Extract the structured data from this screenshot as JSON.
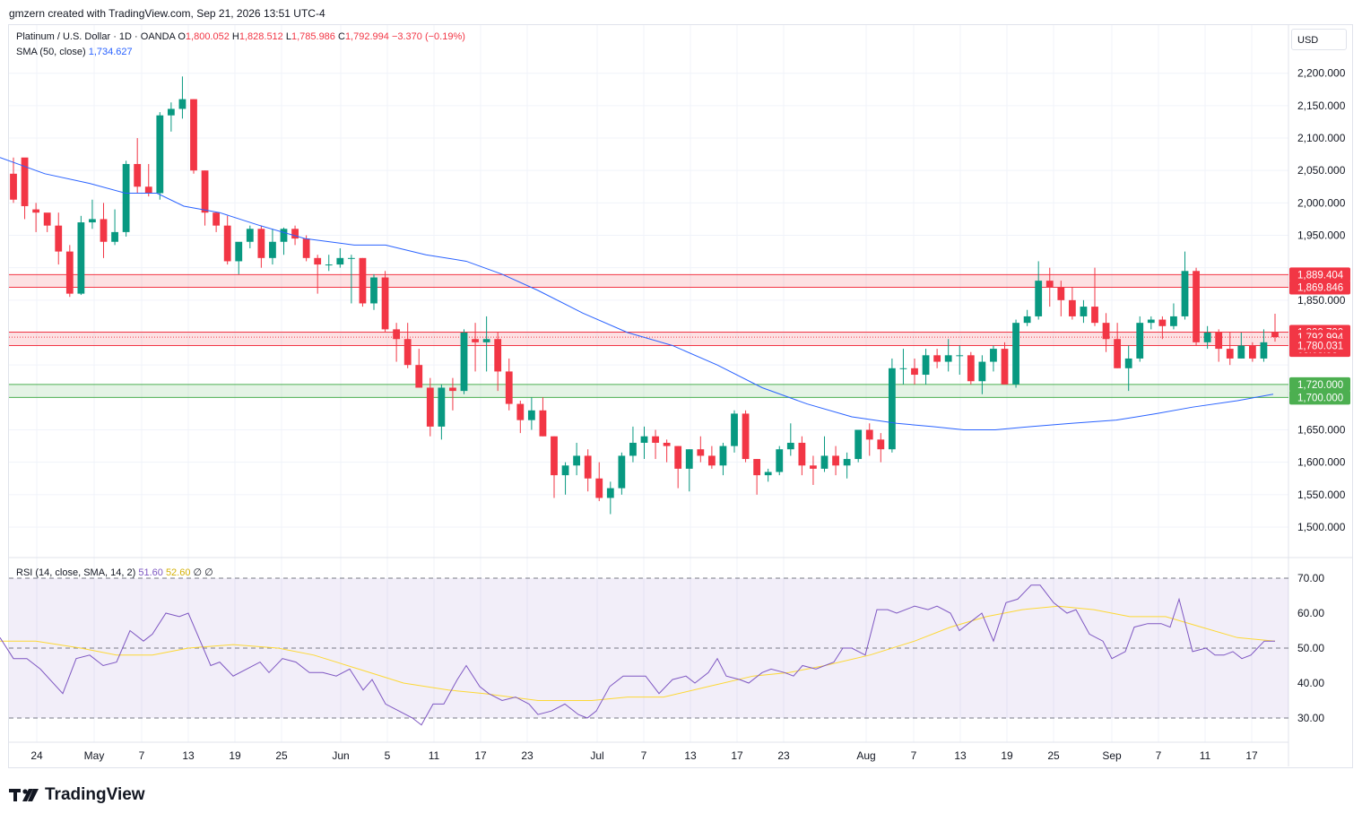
{
  "header": {
    "text": "gmzern created with TradingView.com, Sep 21, 2026 13:51 UTC-4"
  },
  "legend": {
    "symbol": "Platinum / U.S. Dollar · 1D · OANDA",
    "open_label": "O",
    "open": "1,800.052",
    "high_label": "H",
    "high": "1,828.512",
    "low_label": "L",
    "low": "1,785.986",
    "close_label": "C",
    "close": "1,792.994",
    "change": "−3.370 (−0.19%)",
    "sma_label": "SMA (50, close)",
    "sma_value": "1,734.627",
    "rsi_label": "RSI (14, close, SMA, 14, 2)",
    "rsi_value": "51.60",
    "rsi_sma_value": "52.60",
    "rsi_extra": "∅  ∅"
  },
  "currency_button": "USD",
  "brand": {
    "name": "TradingView",
    "logo_icon": "tradingview-logo-icon"
  },
  "colors": {
    "up": "#089981",
    "down": "#f23645",
    "sma": "#2962ff",
    "rsi": "#7e57c2",
    "rsi_sma": "#fdd835",
    "resistance_zone": "#f23645",
    "support_zone": "#4caf50"
  },
  "chart_data": {
    "type": "candlestick",
    "price_axis": {
      "ticks": [
        1500,
        1550,
        1600,
        1650,
        1700,
        1750,
        1800,
        1850,
        1900,
        1950,
        2000,
        2050,
        2100,
        2150,
        2200
      ],
      "tick_labels": [
        "1,500.000",
        "1,550.000",
        "1,600.000",
        "1,650.000",
        "1,700.000",
        "",
        "",
        "1,850.000",
        "",
        "1,950.000",
        "2,000.000",
        "2,050.000",
        "2,100.000",
        "2,150.000",
        "2,200.000"
      ]
    },
    "x_axis_labels": [
      "24",
      "May",
      "7",
      "13",
      "19",
      "25",
      "Jun",
      "5",
      "11",
      "17",
      "23",
      "Jul",
      "7",
      "13",
      "17",
      "23",
      "Aug",
      "7",
      "13",
      "19",
      "25",
      "Sep",
      "7",
      "11",
      "17"
    ],
    "price_labels": [
      {
        "value": 1889.404,
        "text": "1,889.404",
        "color": "#f23645"
      },
      {
        "value": 1869.846,
        "text": "1,869.846",
        "color": "#f23645"
      },
      {
        "value": 1800.7,
        "text": "1,800.700",
        "color": "#f23645"
      },
      {
        "value": 1792.994,
        "text": "1,792.994",
        "sub": "03:08:53",
        "color": "#f23645"
      },
      {
        "value": 1780.031,
        "text": "1,780.031",
        "color": "#f23645"
      },
      {
        "value": 1720.0,
        "text": "1,720.000",
        "color": "#4caf50"
      },
      {
        "value": 1700.0,
        "text": "1,700.000",
        "color": "#4caf50"
      }
    ],
    "zones": [
      {
        "from": 1869.846,
        "to": 1889.404,
        "kind": "resistance"
      },
      {
        "from": 1780.031,
        "to": 1800.7,
        "kind": "resistance"
      },
      {
        "from": 1700.0,
        "to": 1720.0,
        "kind": "support"
      }
    ],
    "candles": [
      [
        2045,
        2070,
        2000,
        2005
      ],
      [
        2070,
        2065,
        1975,
        1995
      ],
      [
        1990,
        2000,
        1955,
        1985
      ],
      [
        1985,
        1980,
        1955,
        1965
      ],
      [
        1965,
        1985,
        1905,
        1925
      ],
      [
        1925,
        1935,
        1855,
        1860
      ],
      [
        1860,
        1980,
        1858,
        1970
      ],
      [
        1970,
        2005,
        1960,
        1975
      ],
      [
        1975,
        2000,
        1915,
        1940
      ],
      [
        1940,
        1990,
        1935,
        1955
      ],
      [
        1955,
        2065,
        1948,
        2060
      ],
      [
        2060,
        2100,
        2015,
        2025
      ],
      [
        2025,
        2060,
        2010,
        2015
      ],
      [
        2015,
        2140,
        2005,
        2135
      ],
      [
        2135,
        2155,
        2110,
        2145
      ],
      [
        2145,
        2195,
        2130,
        2160
      ],
      [
        2160,
        2160,
        2045,
        2050
      ],
      [
        2050,
        2050,
        1965,
        1985
      ],
      [
        1985,
        1985,
        1955,
        1965
      ],
      [
        1965,
        1980,
        1905,
        1910
      ],
      [
        1910,
        1935,
        1890,
        1940
      ],
      [
        1940,
        1965,
        1930,
        1960
      ],
      [
        1960,
        1965,
        1900,
        1915
      ],
      [
        1915,
        1960,
        1905,
        1940
      ],
      [
        1940,
        1962,
        1920,
        1960
      ],
      [
        1960,
        1965,
        1935,
        1945
      ],
      [
        1945,
        1950,
        1910,
        1915
      ],
      [
        1915,
        1920,
        1860,
        1905
      ],
      [
        1905,
        1920,
        1895,
        1905
      ],
      [
        1905,
        1930,
        1900,
        1915
      ],
      [
        1915,
        1920,
        1845,
        1915
      ],
      [
        1915,
        1915,
        1840,
        1845
      ],
      [
        1845,
        1890,
        1835,
        1885
      ],
      [
        1885,
        1895,
        1800,
        1805
      ],
      [
        1805,
        1815,
        1755,
        1790
      ],
      [
        1790,
        1815,
        1745,
        1750
      ],
      [
        1750,
        1775,
        1715,
        1715
      ],
      [
        1715,
        1730,
        1640,
        1655
      ],
      [
        1655,
        1720,
        1635,
        1715
      ],
      [
        1715,
        1730,
        1680,
        1710
      ],
      [
        1710,
        1805,
        1705,
        1800
      ],
      [
        1790,
        1815,
        1740,
        1785
      ],
      [
        1785,
        1825,
        1740,
        1790
      ],
      [
        1790,
        1800,
        1710,
        1740
      ],
      [
        1740,
        1760,
        1680,
        1690
      ],
      [
        1690,
        1695,
        1645,
        1665
      ],
      [
        1665,
        1700,
        1650,
        1680
      ],
      [
        1680,
        1700,
        1640,
        1640
      ],
      [
        1640,
        1640,
        1545,
        1580
      ],
      [
        1580,
        1600,
        1550,
        1595
      ],
      [
        1595,
        1630,
        1580,
        1610
      ],
      [
        1610,
        1620,
        1555,
        1575
      ],
      [
        1575,
        1600,
        1540,
        1545
      ],
      [
        1545,
        1570,
        1520,
        1560
      ],
      [
        1560,
        1615,
        1550,
        1610
      ],
      [
        1610,
        1655,
        1600,
        1630
      ],
      [
        1630,
        1655,
        1605,
        1640
      ],
      [
        1640,
        1650,
        1605,
        1630
      ],
      [
        1630,
        1635,
        1600,
        1625
      ],
      [
        1625,
        1625,
        1560,
        1590
      ],
      [
        1590,
        1620,
        1555,
        1620
      ],
      [
        1620,
        1640,
        1600,
        1610
      ],
      [
        1610,
        1625,
        1590,
        1595
      ],
      [
        1595,
        1630,
        1580,
        1625
      ],
      [
        1625,
        1680,
        1615,
        1675
      ],
      [
        1675,
        1680,
        1600,
        1605
      ],
      [
        1605,
        1605,
        1550,
        1580
      ],
      [
        1580,
        1590,
        1570,
        1585
      ],
      [
        1585,
        1625,
        1580,
        1620
      ],
      [
        1620,
        1660,
        1610,
        1630
      ],
      [
        1630,
        1640,
        1580,
        1595
      ],
      [
        1595,
        1610,
        1565,
        1590
      ],
      [
        1590,
        1640,
        1585,
        1610
      ],
      [
        1610,
        1625,
        1580,
        1595
      ],
      [
        1595,
        1615,
        1575,
        1605
      ],
      [
        1605,
        1650,
        1600,
        1650
      ],
      [
        1650,
        1660,
        1610,
        1635
      ],
      [
        1635,
        1645,
        1600,
        1620
      ],
      [
        1620,
        1760,
        1615,
        1745
      ],
      [
        1745,
        1775,
        1720,
        1745
      ],
      [
        1745,
        1760,
        1720,
        1735
      ],
      [
        1735,
        1775,
        1720,
        1765
      ],
      [
        1765,
        1775,
        1745,
        1755
      ],
      [
        1755,
        1790,
        1740,
        1765
      ],
      [
        1765,
        1780,
        1735,
        1765
      ],
      [
        1765,
        1770,
        1720,
        1725
      ],
      [
        1725,
        1765,
        1705,
        1755
      ],
      [
        1755,
        1780,
        1740,
        1775
      ],
      [
        1775,
        1785,
        1720,
        1720
      ],
      [
        1720,
        1820,
        1715,
        1815
      ],
      [
        1815,
        1835,
        1810,
        1825
      ],
      [
        1825,
        1910,
        1820,
        1880
      ],
      [
        1880,
        1900,
        1840,
        1870
      ],
      [
        1870,
        1880,
        1825,
        1850
      ],
      [
        1850,
        1870,
        1820,
        1825
      ],
      [
        1825,
        1850,
        1815,
        1840
      ],
      [
        1840,
        1900,
        1810,
        1815
      ],
      [
        1815,
        1830,
        1770,
        1790
      ],
      [
        1790,
        1815,
        1745,
        1745
      ],
      [
        1745,
        1780,
        1710,
        1760
      ],
      [
        1760,
        1825,
        1755,
        1815
      ],
      [
        1815,
        1825,
        1805,
        1820
      ],
      [
        1820,
        1825,
        1790,
        1810
      ],
      [
        1810,
        1845,
        1805,
        1825
      ],
      [
        1825,
        1925,
        1820,
        1895
      ],
      [
        1895,
        1900,
        1780,
        1785
      ],
      [
        1785,
        1810,
        1775,
        1800
      ],
      [
        1800,
        1805,
        1755,
        1775
      ],
      [
        1775,
        1800,
        1750,
        1760
      ],
      [
        1760,
        1800,
        1760,
        1780
      ],
      [
        1780,
        1785,
        1755,
        1760
      ],
      [
        1760,
        1805,
        1755,
        1785
      ],
      [
        1800,
        1829,
        1786,
        1793
      ]
    ],
    "sma": [
      [
        0,
        2070
      ],
      [
        50,
        2045
      ],
      [
        100,
        2030
      ],
      [
        140,
        2015
      ],
      [
        175,
        2015
      ],
      [
        205,
        1995
      ],
      [
        245,
        1985
      ],
      [
        290,
        1965
      ],
      [
        340,
        1945
      ],
      [
        395,
        1935
      ],
      [
        430,
        1935
      ],
      [
        475,
        1920
      ],
      [
        520,
        1910
      ],
      [
        560,
        1890
      ],
      [
        600,
        1865
      ],
      [
        650,
        1830
      ],
      [
        700,
        1800
      ],
      [
        750,
        1780
      ],
      [
        800,
        1750
      ],
      [
        850,
        1715
      ],
      [
        900,
        1690
      ],
      [
        950,
        1670
      ],
      [
        1000,
        1660
      ],
      [
        1040,
        1655
      ],
      [
        1075,
        1650
      ],
      [
        1110,
        1650
      ],
      [
        1150,
        1655
      ],
      [
        1195,
        1660
      ],
      [
        1245,
        1665
      ],
      [
        1290,
        1675
      ],
      [
        1330,
        1685
      ],
      [
        1380,
        1695
      ],
      [
        1420,
        1705
      ]
    ],
    "rsi_axis": {
      "ticks": [
        30,
        40,
        50,
        60,
        70
      ],
      "tick_labels": [
        "30.00",
        "40.00",
        "50.00",
        "60.00",
        "70.00"
      ],
      "band": [
        30,
        70
      ]
    },
    "rsi": [
      [
        0,
        53
      ],
      [
        15,
        47
      ],
      [
        30,
        47
      ],
      [
        45,
        44
      ],
      [
        70,
        37
      ],
      [
        85,
        47
      ],
      [
        100,
        48
      ],
      [
        115,
        45
      ],
      [
        130,
        46
      ],
      [
        145,
        55
      ],
      [
        160,
        52
      ],
      [
        170,
        54
      ],
      [
        185,
        60
      ],
      [
        200,
        59
      ],
      [
        210,
        60
      ],
      [
        235,
        45
      ],
      [
        245,
        46
      ],
      [
        260,
        42
      ],
      [
        275,
        44
      ],
      [
        290,
        46
      ],
      [
        300,
        43
      ],
      [
        315,
        47
      ],
      [
        330,
        46
      ],
      [
        345,
        43
      ],
      [
        360,
        43
      ],
      [
        375,
        42
      ],
      [
        390,
        44
      ],
      [
        405,
        38
      ],
      [
        415,
        41
      ],
      [
        430,
        34
      ],
      [
        445,
        32
      ],
      [
        460,
        30
      ],
      [
        470,
        28
      ],
      [
        483,
        34
      ],
      [
        495,
        34
      ],
      [
        510,
        41
      ],
      [
        520,
        45
      ],
      [
        535,
        39
      ],
      [
        545,
        37
      ],
      [
        560,
        35
      ],
      [
        575,
        36
      ],
      [
        590,
        34
      ],
      [
        600,
        31
      ],
      [
        615,
        32
      ],
      [
        630,
        34
      ],
      [
        645,
        31
      ],
      [
        655,
        30
      ],
      [
        665,
        32
      ],
      [
        680,
        39
      ],
      [
        695,
        42
      ],
      [
        710,
        42
      ],
      [
        720,
        42
      ],
      [
        735,
        37
      ],
      [
        750,
        41
      ],
      [
        765,
        42
      ],
      [
        775,
        40
      ],
      [
        790,
        43
      ],
      [
        800,
        47
      ],
      [
        810,
        42
      ],
      [
        825,
        41
      ],
      [
        835,
        40
      ],
      [
        850,
        43
      ],
      [
        860,
        44
      ],
      [
        875,
        43
      ],
      [
        885,
        42
      ],
      [
        895,
        45
      ],
      [
        910,
        44
      ],
      [
        930,
        46
      ],
      [
        940,
        50
      ],
      [
        950,
        50
      ],
      [
        965,
        48
      ],
      [
        978,
        61
      ],
      [
        990,
        61
      ],
      [
        1000,
        60
      ],
      [
        1020,
        62
      ],
      [
        1035,
        61
      ],
      [
        1045,
        62
      ],
      [
        1060,
        60
      ],
      [
        1070,
        55
      ],
      [
        1085,
        58
      ],
      [
        1095,
        60
      ],
      [
        1108,
        52
      ],
      [
        1122,
        63
      ],
      [
        1135,
        64
      ],
      [
        1150,
        68
      ],
      [
        1160,
        68
      ],
      [
        1175,
        63
      ],
      [
        1190,
        60
      ],
      [
        1200,
        61
      ],
      [
        1215,
        54
      ],
      [
        1230,
        52
      ],
      [
        1240,
        47
      ],
      [
        1255,
        49
      ],
      [
        1265,
        56
      ],
      [
        1280,
        57
      ],
      [
        1295,
        57
      ],
      [
        1305,
        56
      ],
      [
        1315,
        64
      ],
      [
        1330,
        49
      ],
      [
        1345,
        50
      ],
      [
        1355,
        48
      ],
      [
        1365,
        48
      ],
      [
        1375,
        49
      ],
      [
        1385,
        47
      ],
      [
        1395,
        48
      ],
      [
        1410,
        52
      ],
      [
        1422,
        52
      ]
    ],
    "rsi_sma": [
      [
        0,
        52
      ],
      [
        40,
        52
      ],
      [
        90,
        50
      ],
      [
        130,
        48
      ],
      [
        170,
        48
      ],
      [
        210,
        50
      ],
      [
        260,
        51
      ],
      [
        310,
        50
      ],
      [
        350,
        48
      ],
      [
        400,
        44
      ],
      [
        450,
        40
      ],
      [
        500,
        38
      ],
      [
        540,
        37
      ],
      [
        600,
        35
      ],
      [
        660,
        35
      ],
      [
        700,
        36
      ],
      [
        740,
        36
      ],
      [
        790,
        39
      ],
      [
        840,
        42
      ],
      [
        880,
        43
      ],
      [
        920,
        45
      ],
      [
        970,
        48
      ],
      [
        1020,
        52
      ],
      [
        1060,
        56
      ],
      [
        1100,
        59
      ],
      [
        1140,
        61
      ],
      [
        1180,
        62
      ],
      [
        1220,
        61
      ],
      [
        1260,
        59
      ],
      [
        1300,
        59
      ],
      [
        1340,
        56
      ],
      [
        1380,
        53
      ],
      [
        1422,
        52
      ]
    ]
  }
}
